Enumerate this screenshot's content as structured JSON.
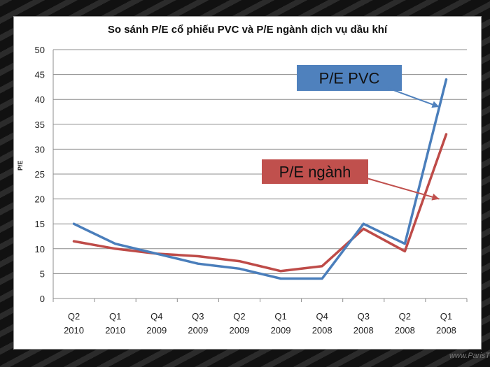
{
  "chart_data": {
    "type": "line",
    "title": "So sánh P/E cổ phiếu PVC và P/E ngành dịch vụ dầu khí",
    "ylabel": "P/E",
    "xlabel": "",
    "ylim": [
      0,
      50
    ],
    "yticks": [
      0,
      5,
      10,
      15,
      20,
      25,
      30,
      35,
      40,
      45,
      50
    ],
    "grid": true,
    "categories": [
      [
        "Q2",
        "2010"
      ],
      [
        "Q1",
        "2010"
      ],
      [
        "Q4",
        "2009"
      ],
      [
        "Q3",
        "2009"
      ],
      [
        "Q2",
        "2009"
      ],
      [
        "Q1",
        "2009"
      ],
      [
        "Q4",
        "2008"
      ],
      [
        "Q3",
        "2008"
      ],
      [
        "Q2",
        "2008"
      ],
      [
        "Q1",
        "2008"
      ]
    ],
    "series": [
      {
        "name": "P/E PVC",
        "color": "#4a7ebb",
        "values": [
          15,
          11,
          9,
          7,
          6,
          4,
          4,
          15,
          11,
          44
        ]
      },
      {
        "name": "P/E ngành",
        "color": "#be4b48",
        "values": [
          11.5,
          10,
          9,
          8.5,
          7.5,
          5.5,
          6.5,
          14,
          9.5,
          33
        ]
      }
    ],
    "annotations": [
      {
        "text": "P/E PVC",
        "fill": "#4f81bd",
        "target_series": 0,
        "target_index": 9
      },
      {
        "text": "P/E ngành",
        "fill": "#c0504d",
        "target_series": 1,
        "target_index": 9
      }
    ]
  },
  "watermark": "www.ParisT"
}
